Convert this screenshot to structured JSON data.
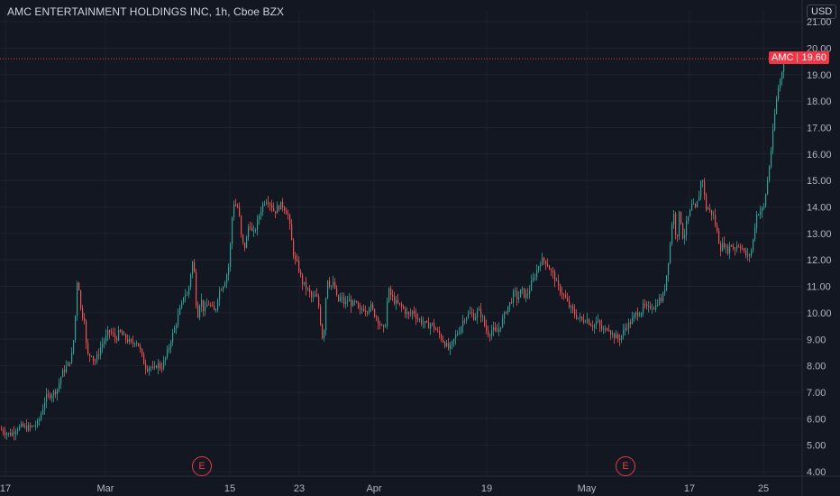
{
  "header": {
    "title": "AMC ENTERTAINMENT HOLDINGS INC, 1h, Cboe BZX",
    "currency": "USD"
  },
  "price_tag": {
    "symbol": "AMC",
    "price": "19.60"
  },
  "earnings_markers": [
    {
      "label": "E"
    },
    {
      "label": "E"
    }
  ],
  "colors": {
    "up": "#26a69a",
    "down": "#ef5350",
    "background": "#131722",
    "grid": "#1e222d",
    "last_price_line": "#f23645"
  },
  "chart_data": {
    "type": "candlestick",
    "title": "AMC ENTERTAINMENT HOLDINGS INC, 1h, Cboe BZX",
    "ylabel": "USD",
    "ylim": [
      4.0,
      21.0
    ],
    "yticks": [
      "4.00",
      "5.00",
      "6.00",
      "7.00",
      "8.00",
      "9.00",
      "10.00",
      "11.00",
      "12.00",
      "13.00",
      "14.00",
      "15.00",
      "16.00",
      "17.00",
      "18.00",
      "19.00",
      "20.00",
      "21.00"
    ],
    "xticks": [
      "17",
      "Mar",
      "15",
      "23",
      "Apr",
      "19",
      "May",
      "17",
      "25"
    ],
    "last_price": 19.6,
    "grid": true,
    "close_path": [
      [
        0,
        5.6
      ],
      [
        5,
        5.5
      ],
      [
        10,
        5.4
      ],
      [
        14,
        5.5
      ],
      [
        18,
        5.65
      ],
      [
        24,
        5.7
      ],
      [
        30,
        5.65
      ],
      [
        36,
        5.7
      ],
      [
        42,
        5.85
      ],
      [
        46,
        6.3
      ],
      [
        50,
        6.8
      ],
      [
        55,
        6.9
      ],
      [
        60,
        7.0
      ],
      [
        64,
        7.2
      ],
      [
        68,
        7.7
      ],
      [
        72,
        7.9
      ],
      [
        76,
        8.1
      ],
      [
        80,
        8.5
      ],
      [
        83,
        9.9
      ],
      [
        85,
        11.2
      ],
      [
        88,
        10.8
      ],
      [
        90,
        9.5
      ],
      [
        92,
        10.3
      ],
      [
        95,
        8.8
      ],
      [
        98,
        8.2
      ],
      [
        100,
        8.6
      ],
      [
        104,
        8.1
      ],
      [
        108,
        8.4
      ],
      [
        112,
        8.8
      ],
      [
        116,
        9.0
      ],
      [
        120,
        9.3
      ],
      [
        124,
        9.2
      ],
      [
        128,
        9.0
      ],
      [
        132,
        9.3
      ],
      [
        136,
        9.1
      ],
      [
        140,
        9.0
      ],
      [
        146,
        8.8
      ],
      [
        150,
        9.0
      ],
      [
        154,
        8.7
      ],
      [
        158,
        8.2
      ],
      [
        162,
        7.9
      ],
      [
        166,
        8.0
      ],
      [
        170,
        7.8
      ],
      [
        174,
        8.1
      ],
      [
        178,
        7.9
      ],
      [
        182,
        8.2
      ],
      [
        186,
        8.6
      ],
      [
        190,
        9.1
      ],
      [
        194,
        9.5
      ],
      [
        198,
        10.0
      ],
      [
        202,
        10.4
      ],
      [
        204,
        10.9
      ],
      [
        206,
        10.5
      ],
      [
        208,
        10.8
      ],
      [
        210,
        11.2
      ],
      [
        212,
        11.8
      ],
      [
        214,
        12.0
      ],
      [
        216,
        11.0
      ],
      [
        218,
        9.8
      ],
      [
        220,
        10.1
      ],
      [
        222,
        10.6
      ],
      [
        224,
        10.3
      ],
      [
        226,
        10.0
      ],
      [
        230,
        10.4
      ],
      [
        234,
        10.2
      ],
      [
        238,
        10.0
      ],
      [
        242,
        10.8
      ],
      [
        246,
        11.0
      ],
      [
        250,
        11.3
      ],
      [
        254,
        11.9
      ],
      [
        256,
        13.2
      ],
      [
        258,
        14.0
      ],
      [
        260,
        14.3
      ],
      [
        262,
        13.8
      ],
      [
        264,
        14.2
      ],
      [
        266,
        13.0
      ],
      [
        268,
        12.8
      ],
      [
        270,
        12.4
      ],
      [
        272,
        12.6
      ],
      [
        274,
        13.0
      ],
      [
        276,
        13.5
      ],
      [
        280,
        12.9
      ],
      [
        284,
        13.3
      ],
      [
        288,
        13.8
      ],
      [
        292,
        14.2
      ],
      [
        296,
        14.3
      ],
      [
        300,
        14.1
      ],
      [
        304,
        13.8
      ],
      [
        308,
        14.0
      ],
      [
        312,
        14.1
      ],
      [
        316,
        13.9
      ],
      [
        320,
        13.6
      ],
      [
        322,
        12.9
      ],
      [
        324,
        12.5
      ],
      [
        326,
        12.0
      ],
      [
        330,
        11.8
      ],
      [
        334,
        11.2
      ],
      [
        338,
        11.0
      ],
      [
        342,
        10.8
      ],
      [
        346,
        10.5
      ],
      [
        350,
        10.7
      ],
      [
        354,
        10.1
      ],
      [
        356,
        9.2
      ],
      [
        358,
        9.0
      ],
      [
        360,
        9.8
      ],
      [
        362,
        11.4
      ],
      [
        366,
        11.0
      ],
      [
        370,
        11.1
      ],
      [
        374,
        10.4
      ],
      [
        378,
        10.6
      ],
      [
        382,
        10.3
      ],
      [
        386,
        10.5
      ],
      [
        390,
        10.3
      ],
      [
        394,
        10.4
      ],
      [
        398,
        10.0
      ],
      [
        402,
        10.2
      ],
      [
        406,
        10.1
      ],
      [
        410,
        10.3
      ],
      [
        414,
        10.0
      ],
      [
        418,
        9.8
      ],
      [
        422,
        9.5
      ],
      [
        426,
        9.3
      ],
      [
        428,
        9.9
      ],
      [
        430,
        10.9
      ],
      [
        434,
        10.6
      ],
      [
        438,
        10.4
      ],
      [
        442,
        10.3
      ],
      [
        446,
        10.2
      ],
      [
        450,
        10.0
      ],
      [
        454,
        9.9
      ],
      [
        458,
        10.1
      ],
      [
        462,
        9.8
      ],
      [
        466,
        9.7
      ],
      [
        470,
        9.6
      ],
      [
        474,
        9.5
      ],
      [
        478,
        9.6
      ],
      [
        482,
        9.4
      ],
      [
        486,
        9.2
      ],
      [
        490,
        9.0
      ],
      [
        494,
        8.8
      ],
      [
        498,
        8.6
      ],
      [
        502,
        8.9
      ],
      [
        506,
        9.2
      ],
      [
        510,
        9.4
      ],
      [
        514,
        9.8
      ],
      [
        518,
        9.9
      ],
      [
        522,
        10.0
      ],
      [
        526,
        9.8
      ],
      [
        530,
        10.1
      ],
      [
        534,
        9.9
      ],
      [
        538,
        9.4
      ],
      [
        542,
        9.2
      ],
      [
        546,
        9.4
      ],
      [
        550,
        9.2
      ],
      [
        554,
        9.5
      ],
      [
        558,
        9.8
      ],
      [
        562,
        10.2
      ],
      [
        566,
        10.4
      ],
      [
        570,
        10.8
      ],
      [
        574,
        10.5
      ],
      [
        578,
        10.9
      ],
      [
        582,
        10.6
      ],
      [
        586,
        10.8
      ],
      [
        590,
        11.2
      ],
      [
        594,
        11.5
      ],
      [
        598,
        11.9
      ],
      [
        602,
        12.0
      ],
      [
        606,
        11.9
      ],
      [
        610,
        11.6
      ],
      [
        614,
        11.4
      ],
      [
        618,
        11.0
      ],
      [
        622,
        10.8
      ],
      [
        626,
        10.6
      ],
      [
        630,
        10.3
      ],
      [
        634,
        10.1
      ],
      [
        638,
        9.9
      ],
      [
        642,
        9.8
      ],
      [
        646,
        9.7
      ],
      [
        650,
        9.8
      ],
      [
        654,
        9.6
      ],
      [
        658,
        9.5
      ],
      [
        662,
        9.7
      ],
      [
        666,
        9.4
      ],
      [
        670,
        9.3
      ],
      [
        674,
        9.5
      ],
      [
        678,
        9.2
      ],
      [
        682,
        9.1
      ],
      [
        686,
        9.0
      ],
      [
        690,
        9.2
      ],
      [
        694,
        9.5
      ],
      [
        698,
        9.6
      ],
      [
        702,
        9.8
      ],
      [
        706,
        10.0
      ],
      [
        710,
        10.0
      ],
      [
        714,
        10.3
      ],
      [
        718,
        10.1
      ],
      [
        722,
        10.3
      ],
      [
        726,
        10.2
      ],
      [
        730,
        10.5
      ],
      [
        734,
        10.5
      ],
      [
        738,
        11.1
      ],
      [
        740,
        11.8
      ],
      [
        742,
        12.2
      ],
      [
        744,
        13.0
      ],
      [
        746,
        13.8
      ],
      [
        748,
        13.6
      ],
      [
        750,
        12.5
      ],
      [
        752,
        13.5
      ],
      [
        754,
        13.9
      ],
      [
        756,
        13.0
      ],
      [
        758,
        12.8
      ],
      [
        760,
        13.2
      ],
      [
        762,
        13.5
      ],
      [
        764,
        13.7
      ],
      [
        766,
        13.9
      ],
      [
        768,
        14.2
      ],
      [
        770,
        13.8
      ],
      [
        772,
        14.0
      ],
      [
        774,
        14.3
      ],
      [
        776,
        14.6
      ],
      [
        778,
        15.3
      ],
      [
        780,
        14.8
      ],
      [
        782,
        14.0
      ],
      [
        784,
        13.9
      ],
      [
        786,
        14.0
      ],
      [
        788,
        13.7
      ],
      [
        790,
        13.8
      ],
      [
        792,
        13.5
      ],
      [
        794,
        13.2
      ],
      [
        796,
        12.9
      ],
      [
        798,
        12.5
      ],
      [
        800,
        12.4
      ],
      [
        802,
        12.7
      ],
      [
        806,
        12.3
      ],
      [
        810,
        12.6
      ],
      [
        814,
        12.4
      ],
      [
        818,
        12.6
      ],
      [
        822,
        12.5
      ],
      [
        826,
        12.2
      ],
      [
        830,
        12.1
      ],
      [
        832,
        12.3
      ],
      [
        834,
        12.4
      ],
      [
        836,
        13.1
      ],
      [
        838,
        13.5
      ],
      [
        840,
        13.9
      ],
      [
        842,
        13.7
      ],
      [
        844,
        14.0
      ],
      [
        846,
        13.8
      ],
      [
        848,
        14.2
      ],
      [
        850,
        14.8
      ],
      [
        852,
        15.2
      ],
      [
        854,
        15.9
      ],
      [
        856,
        16.4
      ],
      [
        858,
        17.2
      ],
      [
        860,
        17.8
      ],
      [
        862,
        18.3
      ],
      [
        864,
        18.7
      ],
      [
        866,
        18.9
      ],
      [
        868,
        19.4
      ],
      [
        870,
        19.6
      ]
    ],
    "earnings_dates": [
      "Mar 10",
      "May 5"
    ]
  }
}
